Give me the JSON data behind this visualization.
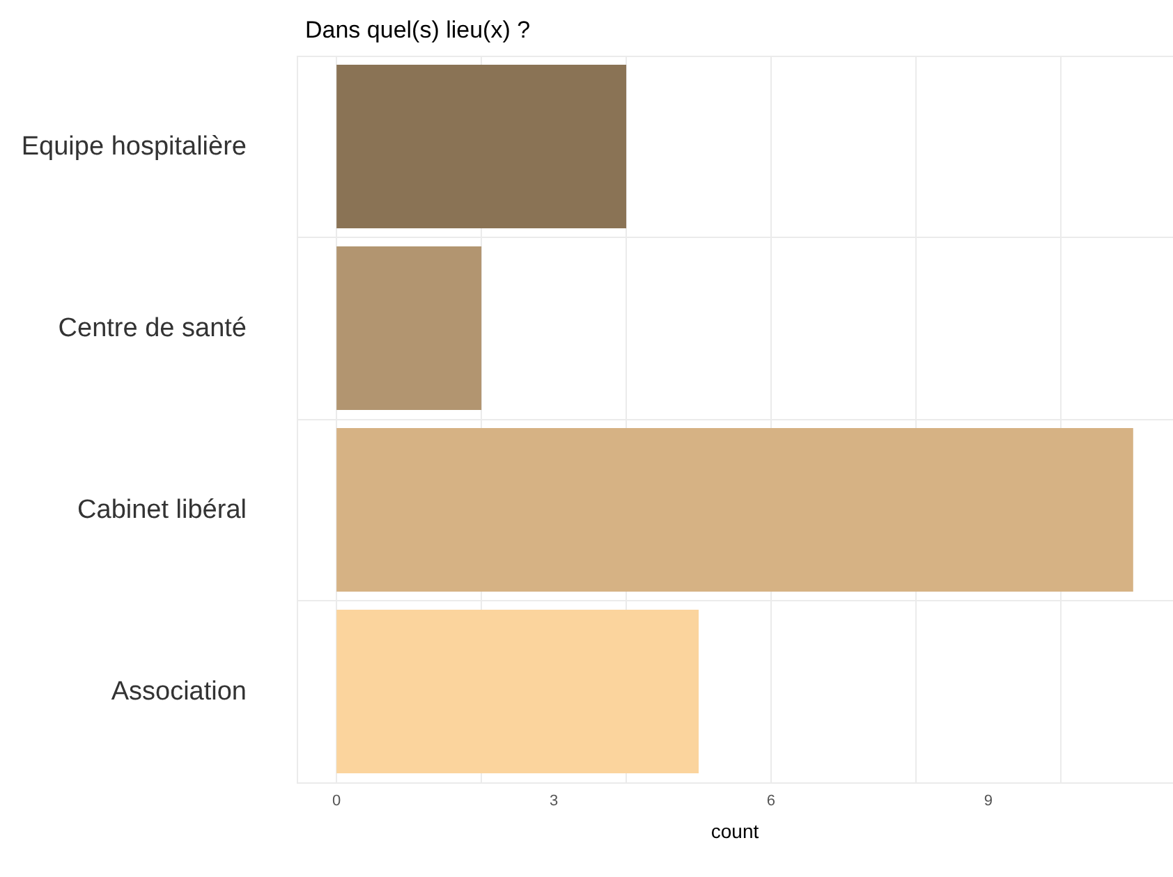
{
  "chart_data": {
    "type": "bar",
    "orientation": "horizontal",
    "title": "Dans quel(s) lieu(x) ?",
    "xlabel": "count",
    "categories": [
      "Equipe hospitalière",
      "Centre de santé",
      "Cabinet libéral",
      "Association"
    ],
    "values": [
      4,
      2,
      11,
      5
    ],
    "colors": [
      "#8a7355",
      "#b29570",
      "#d6b284",
      "#fbd49d"
    ],
    "xlim": [
      -0.55,
      11.55
    ],
    "xticks": [
      0,
      3,
      6,
      9
    ],
    "grid": true
  }
}
